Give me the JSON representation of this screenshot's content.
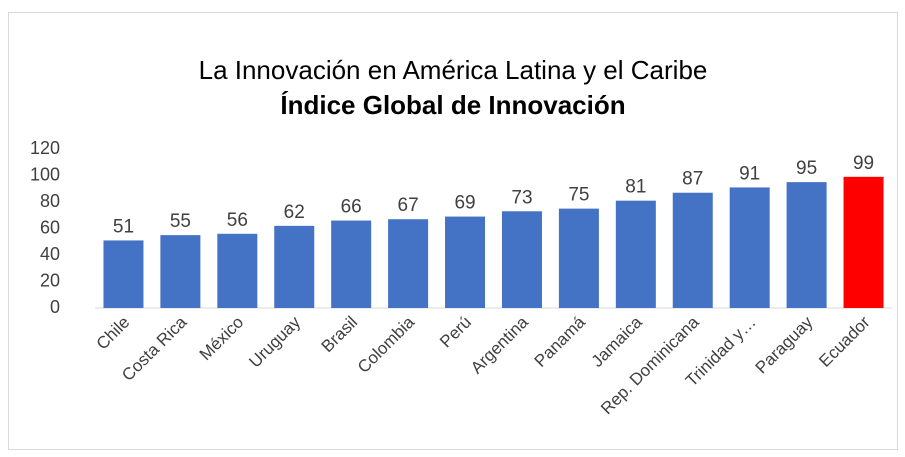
{
  "chart_data": {
    "type": "bar",
    "title": "La Innovación en América Latina y el Caribe",
    "subtitle": "Índice Global de Innovación",
    "categories": [
      "Chile",
      "Costa Rica",
      "México",
      "Uruguay",
      "Brasil",
      "Colombia",
      "Perú",
      "Argentina",
      "Panamá",
      "Jamaica",
      "Rep. Dominicana",
      "Trinidad y…",
      "Paraguay",
      "Ecuador"
    ],
    "values": [
      51,
      55,
      56,
      62,
      66,
      67,
      69,
      73,
      75,
      81,
      87,
      91,
      95,
      99
    ],
    "colors": [
      "#4472c4",
      "#4472c4",
      "#4472c4",
      "#4472c4",
      "#4472c4",
      "#4472c4",
      "#4472c4",
      "#4472c4",
      "#4472c4",
      "#4472c4",
      "#4472c4",
      "#4472c4",
      "#4472c4",
      "#ff0000"
    ],
    "ylim": [
      0,
      120
    ],
    "yticks": [
      0,
      20,
      40,
      60,
      80,
      100,
      120
    ],
    "grid": false
  }
}
